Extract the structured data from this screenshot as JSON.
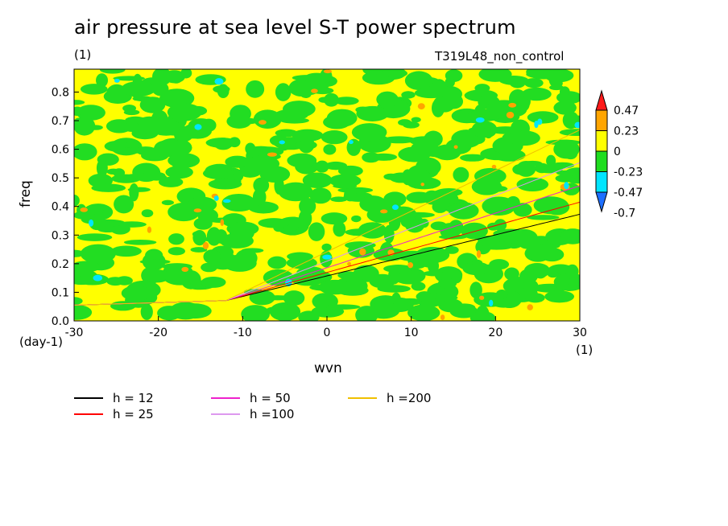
{
  "header": {
    "title": "air pressure at sea level S-T power spectrum",
    "units_left": "(1)",
    "experiment": "T319L48_non_control"
  },
  "axes": {
    "xlabel": "wvn",
    "ylabel": "freq",
    "y_unit": "(day-1)",
    "x_unit": "(1)"
  },
  "chart_data": {
    "type": "heatmap",
    "title": "air pressure at sea level S-T power spectrum",
    "xlabel": "wvn",
    "ylabel": "freq",
    "xlim": [
      -30,
      30
    ],
    "ylim": [
      0,
      0.88
    ],
    "x_ticks": [
      -30,
      -20,
      -10,
      0,
      10,
      20,
      30
    ],
    "y_ticks": [
      0.0,
      0.1,
      0.2,
      0.3,
      0.4,
      0.5,
      0.6,
      0.7,
      0.8
    ],
    "x_tick_labels": [
      "-30",
      "-20",
      "-10",
      "0",
      "10",
      "20",
      "30"
    ],
    "y_tick_labels": [
      "0.0",
      "0.1",
      "0.2",
      "0.3",
      "0.4",
      "0.5",
      "0.6",
      "0.7",
      "0.8"
    ],
    "colorbar": {
      "levels": [
        -0.7,
        -0.47,
        -0.23,
        0,
        0.23,
        0.47
      ],
      "labels": [
        "-0.7",
        "-0.47",
        "-0.23",
        "0",
        "0.23",
        "0.47"
      ],
      "colors": [
        "#1e6fff",
        "#00e5ff",
        "#1fdd1f",
        "#ffff00",
        "#ffa500",
        "#ff1a1a"
      ],
      "extend": "both"
    },
    "curves": [
      {
        "name": "h = 12",
        "h": 12,
        "color": "#000000"
      },
      {
        "name": "h = 25",
        "h": 25,
        "color": "#ff0000"
      },
      {
        "name": "h = 50",
        "h": 50,
        "color": "#ee22cc"
      },
      {
        "name": "h =100",
        "h": 100,
        "color": "#dd99ee"
      },
      {
        "name": "h =200",
        "h": 200,
        "color": "#f0c000"
      }
    ],
    "legend_position": "bottom"
  }
}
